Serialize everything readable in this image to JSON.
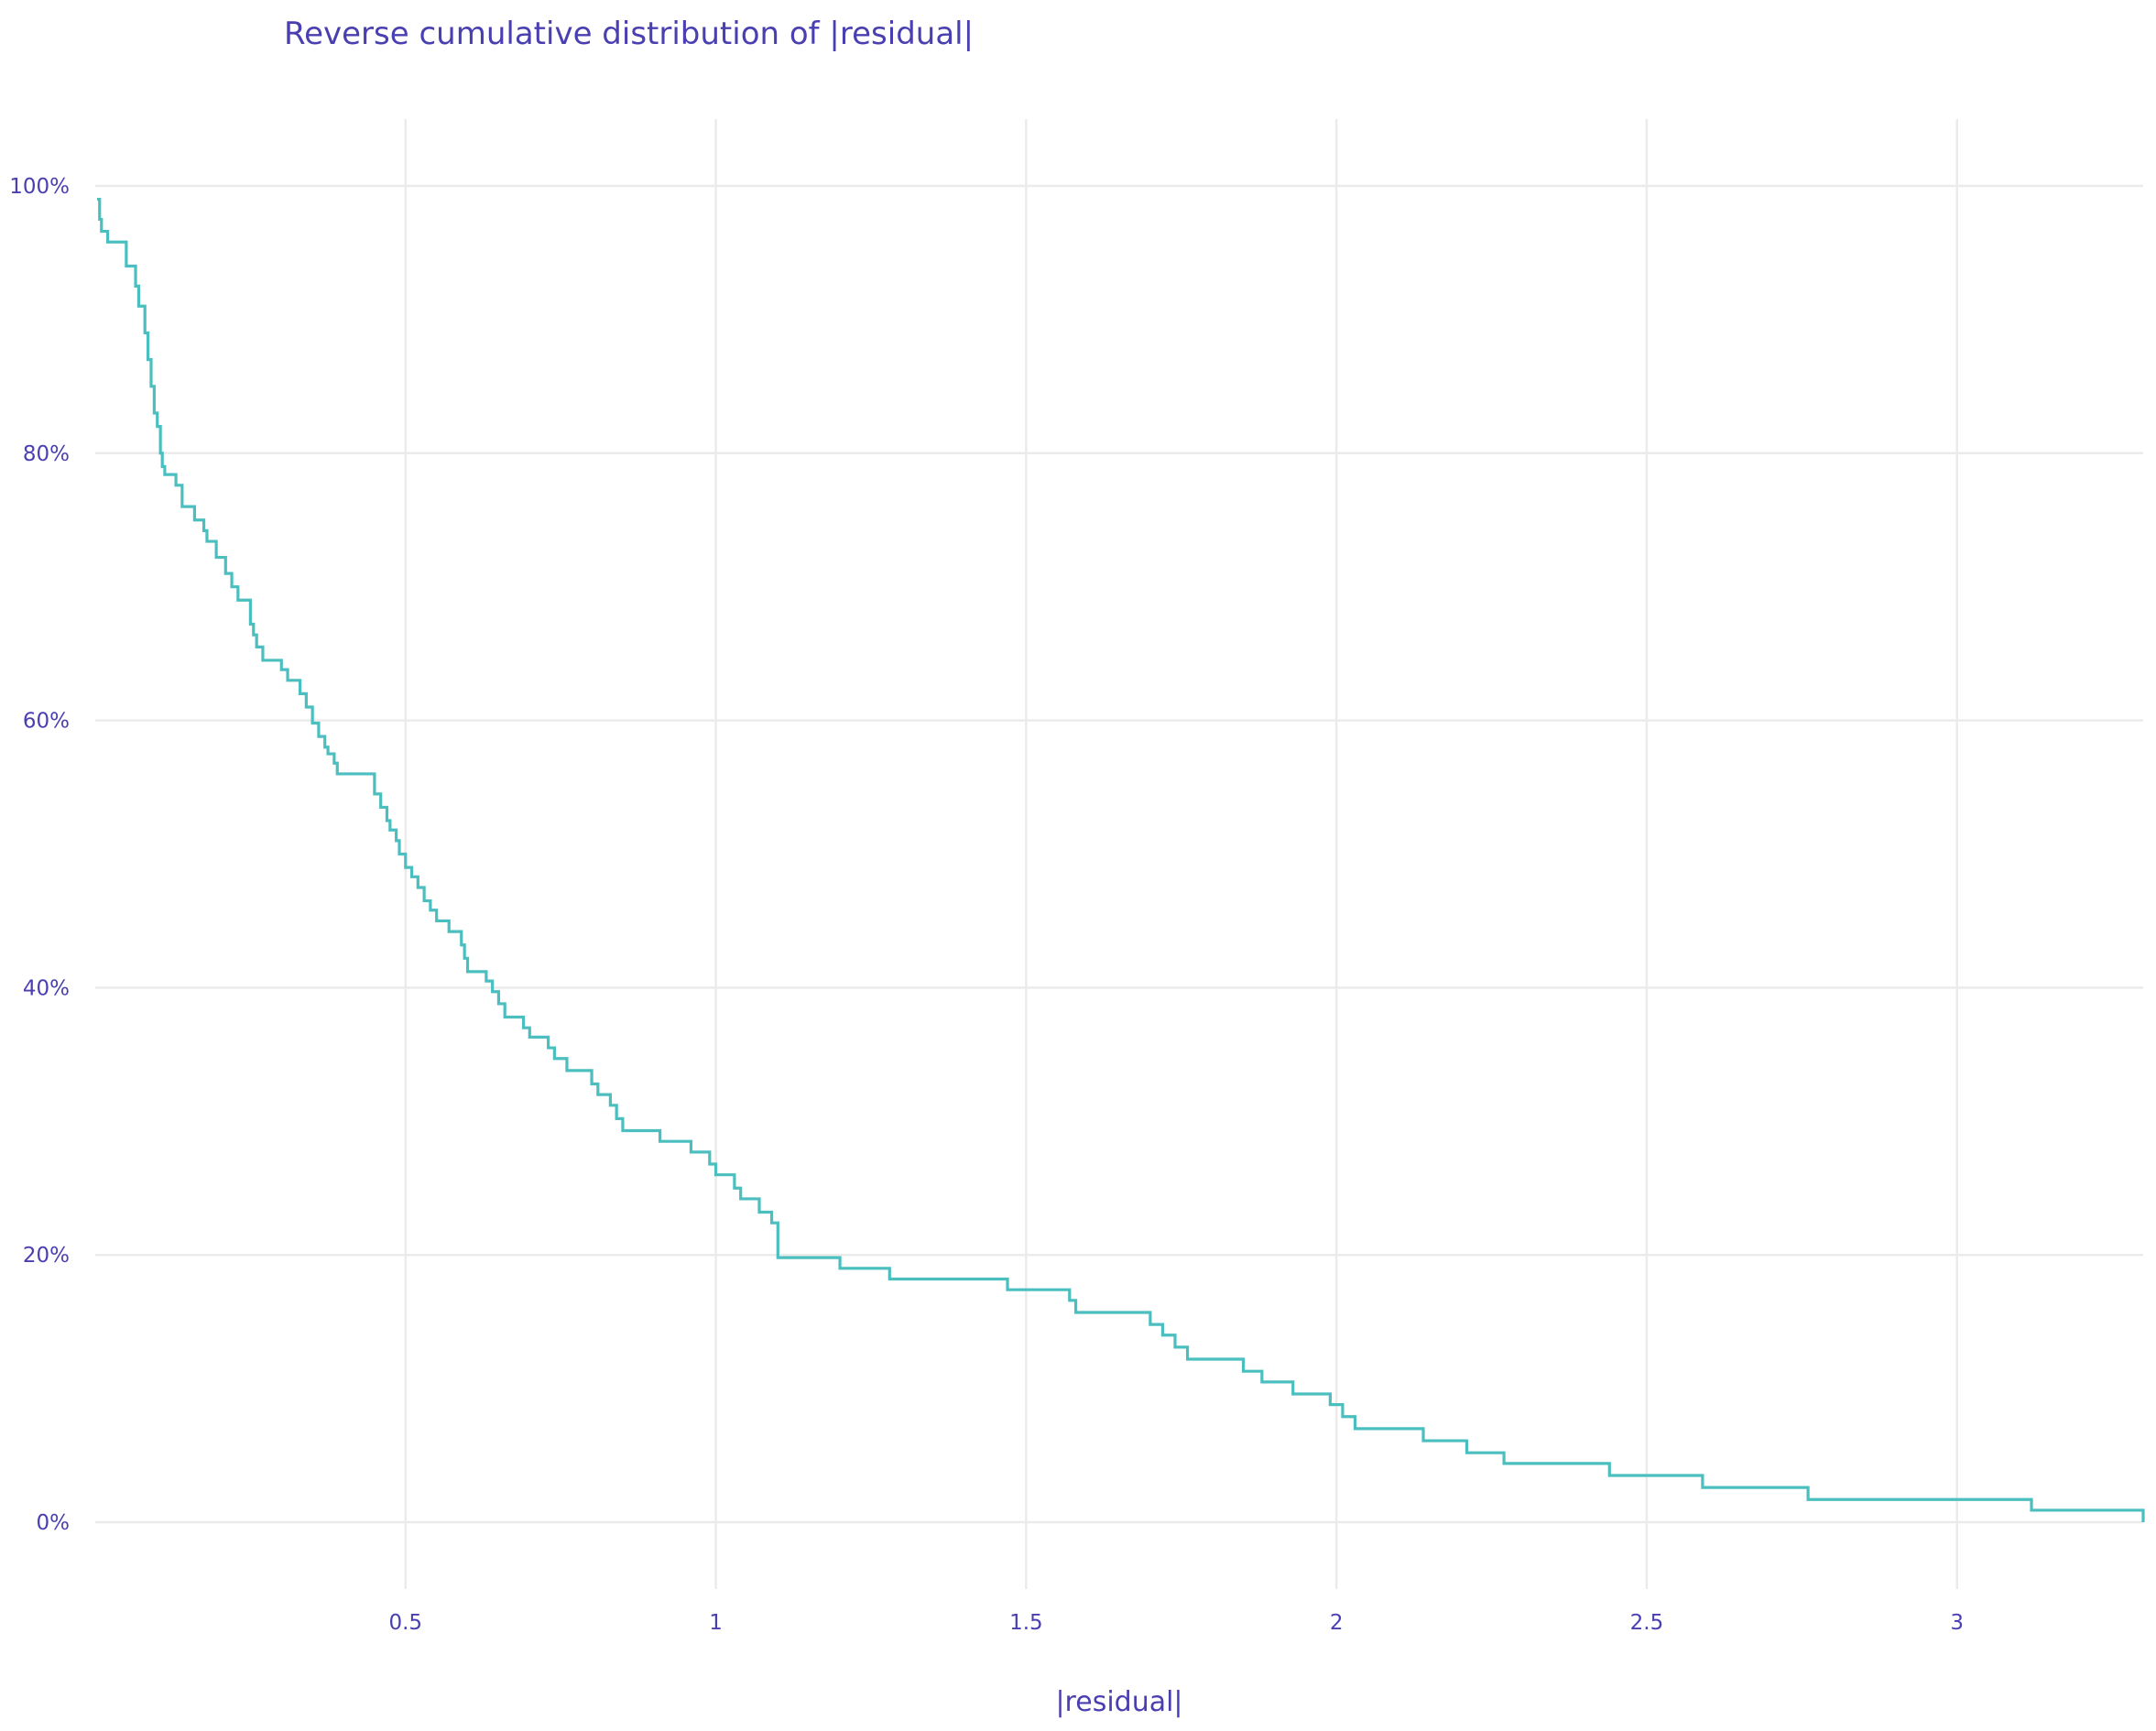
{
  "chart_data": {
    "type": "line",
    "line_shape": "step",
    "title": "Reverse cumulative distribution of |residual|",
    "xlabel": "|residual|",
    "ylabel": "",
    "xlim": [
      0,
      3.3
    ],
    "ylim": [
      -0.05,
      1.05
    ],
    "x_ticks": [
      0.5,
      1,
      1.5,
      2,
      2.5,
      3
    ],
    "x_tick_labels": [
      "0.5",
      "1",
      "1.5",
      "2",
      "2.5",
      "3"
    ],
    "y_ticks": [
      0,
      0.2,
      0.4,
      0.6,
      0.8,
      1.0
    ],
    "y_tick_labels": [
      "0%",
      "20%",
      "40%",
      "60%",
      "80%",
      "100%"
    ],
    "grid": true,
    "legend": "none",
    "colors": {
      "line": "#4bbfbf",
      "text": "#4a3fb0",
      "grid": "#ebebeb"
    },
    "series": [
      {
        "x": [
          0.003,
          0.007,
          0.01,
          0.016,
          0.02,
          0.035,
          0.05,
          0.065,
          0.07,
          0.08,
          0.085,
          0.09,
          0.095,
          0.1,
          0.105,
          0.108,
          0.112,
          0.115,
          0.13,
          0.14,
          0.16,
          0.175,
          0.18,
          0.195,
          0.21,
          0.22,
          0.23,
          0.25,
          0.255,
          0.26,
          0.27,
          0.3,
          0.31,
          0.33,
          0.34,
          0.35,
          0.36,
          0.37,
          0.375,
          0.385,
          0.39,
          0.4,
          0.41,
          0.45,
          0.46,
          0.47,
          0.475,
          0.485,
          0.49,
          0.5,
          0.51,
          0.52,
          0.53,
          0.54,
          0.55,
          0.57,
          0.59,
          0.595,
          0.6,
          0.63,
          0.64,
          0.65,
          0.66,
          0.69,
          0.7,
          0.73,
          0.74,
          0.76,
          0.8,
          0.81,
          0.83,
          0.84,
          0.85,
          0.91,
          0.96,
          0.99,
          1,
          1.03,
          1.04,
          1.07,
          1.09,
          1.1,
          1.2,
          1.28,
          1.47,
          1.57,
          1.58,
          1.7,
          1.72,
          1.74,
          1.76,
          1.85,
          1.88,
          1.93,
          1.99,
          2.01,
          2.03,
          2.14,
          2.21,
          2.27,
          2.44,
          2.59,
          2.76,
          3.12,
          3.3
        ],
        "y": [
          0.99,
          0.975,
          0.966,
          0.966,
          0.958,
          0.958,
          0.94,
          0.925,
          0.91,
          0.89,
          0.87,
          0.85,
          0.83,
          0.82,
          0.8,
          0.79,
          0.784,
          0.784,
          0.776,
          0.76,
          0.75,
          0.742,
          0.734,
          0.722,
          0.71,
          0.7,
          0.69,
          0.672,
          0.664,
          0.655,
          0.645,
          0.638,
          0.63,
          0.62,
          0.61,
          0.598,
          0.588,
          0.58,
          0.575,
          0.568,
          0.56,
          0.56,
          0.56,
          0.545,
          0.535,
          0.525,
          0.518,
          0.51,
          0.5,
          0.49,
          0.483,
          0.475,
          0.465,
          0.458,
          0.45,
          0.442,
          0.432,
          0.422,
          0.412,
          0.405,
          0.397,
          0.388,
          0.378,
          0.37,
          0.363,
          0.355,
          0.347,
          0.338,
          0.328,
          0.32,
          0.312,
          0.302,
          0.293,
          0.285,
          0.277,
          0.268,
          0.26,
          0.25,
          0.242,
          0.232,
          0.224,
          0.198,
          0.19,
          0.182,
          0.174,
          0.166,
          0.157,
          0.148,
          0.14,
          0.131,
          0.122,
          0.113,
          0.105,
          0.096,
          0.088,
          0.079,
          0.07,
          0.061,
          0.052,
          0.044,
          0.035,
          0.026,
          0.017,
          0.009,
          0.0
        ]
      }
    ]
  }
}
